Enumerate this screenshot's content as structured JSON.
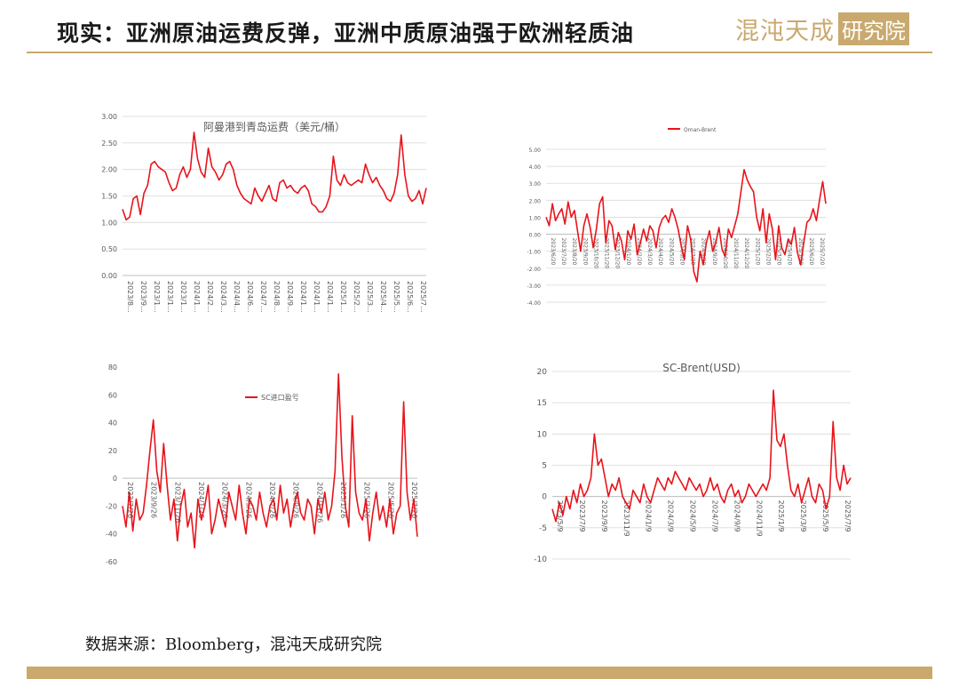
{
  "header": {
    "title": "现实：亚洲原油运费反弹，亚洲中质原油强于欧洲轻质油",
    "logo_text": "混沌天成",
    "logo_box": "研究院"
  },
  "footer": {
    "source": "数据来源：Bloomberg，混沌天成研究院"
  },
  "colors": {
    "series": "#e8141b",
    "gold": "#c9a96e",
    "grid": "#d9d9d9",
    "axis_text": "#595959"
  },
  "chart_data": [
    {
      "type": "line",
      "title": "阿曼港到青岛运费（美元/桶）",
      "ylim": [
        0,
        3
      ],
      "y_ticks": [
        "0.00",
        "0.50",
        "1.00",
        "1.50",
        "2.00",
        "2.50",
        "3.00"
      ],
      "x_ticks": [
        "2023/8...",
        "2023/9...",
        "2023/1...",
        "2023/1...",
        "2023/1...",
        "2024/1...",
        "2024/2...",
        "2024/3...",
        "2024/4...",
        "2024/6...",
        "2024/7...",
        "2024/8...",
        "2024/9...",
        "2024/1...",
        "2024/1...",
        "2024/1...",
        "2025/1...",
        "2025/2...",
        "2025/3...",
        "2025/4...",
        "2025/5...",
        "2025/6...",
        "2025/7..."
      ],
      "grid": true,
      "series": [
        {
          "name": "",
          "values": [
            1.25,
            1.05,
            1.1,
            1.45,
            1.5,
            1.15,
            1.55,
            1.7,
            2.1,
            2.15,
            2.05,
            2.0,
            1.95,
            1.75,
            1.6,
            1.65,
            1.9,
            2.05,
            1.85,
            2.0,
            2.7,
            2.2,
            1.95,
            1.85,
            2.4,
            2.05,
            1.95,
            1.8,
            1.9,
            2.1,
            2.15,
            2.0,
            1.7,
            1.55,
            1.45,
            1.4,
            1.35,
            1.65,
            1.5,
            1.4,
            1.55,
            1.7,
            1.45,
            1.4,
            1.75,
            1.8,
            1.65,
            1.7,
            1.6,
            1.55,
            1.65,
            1.7,
            1.6,
            1.35,
            1.3,
            1.2,
            1.2,
            1.3,
            1.5,
            2.25,
            1.8,
            1.7,
            1.9,
            1.75,
            1.7,
            1.75,
            1.8,
            1.75,
            2.1,
            1.9,
            1.75,
            1.85,
            1.7,
            1.6,
            1.45,
            1.4,
            1.55,
            1.9,
            2.65,
            1.9,
            1.5,
            1.4,
            1.45,
            1.6,
            1.35,
            1.65
          ]
        }
      ]
    },
    {
      "type": "line",
      "ylim": [
        -4,
        5
      ],
      "y_ticks": [
        "5.00",
        "4.00",
        "3.00",
        "2.00",
        "1.00",
        "0.00",
        "-1.00",
        "-2.00",
        "-3.00",
        "-4.00"
      ],
      "x_ticks": [
        "2023/6/20",
        "2023/7/20",
        "2023/8/20",
        "2023/9/20",
        "2023/10/20",
        "2023/11/20",
        "2023/12/20",
        "2024/1/20",
        "2024/2/20",
        "2024/3/20",
        "2024/4/20",
        "2024/5/20",
        "2024/6/20",
        "2024/7/20",
        "2024/8/20",
        "2024/9/20",
        "2024/10/20",
        "2024/11/20",
        "2024/12/20",
        "2025/1/20",
        "2025/2/20",
        "2025/3/20",
        "2025/4/20",
        "2025/5/20",
        "2025/6/20",
        "2025/7/20"
      ],
      "legend": "top",
      "grid": true,
      "series": [
        {
          "name": "Oman-Brent",
          "values": [
            1.0,
            0.5,
            1.8,
            0.8,
            1.2,
            1.5,
            0.6,
            1.9,
            1.0,
            1.4,
            0.2,
            -1.0,
            0.5,
            1.2,
            0.4,
            -0.8,
            0.3,
            1.8,
            2.2,
            -0.5,
            0.8,
            0.5,
            -0.9,
            0.1,
            -0.4,
            -1.5,
            0.2,
            -0.3,
            0.6,
            -1.2,
            -0.5,
            0.3,
            -0.4,
            0.5,
            0.2,
            -0.8,
            0.4,
            0.9,
            1.1,
            0.7,
            1.5,
            1.0,
            0.3,
            -0.7,
            -1.5,
            0.5,
            -0.3,
            -2.2,
            -2.8,
            -1.0,
            -1.8,
            -0.5,
            0.2,
            -1.0,
            -0.5,
            0.4,
            -0.9,
            -1.3,
            0.3,
            -0.2,
            0.5,
            1.2,
            2.5,
            3.8,
            3.2,
            2.8,
            2.5,
            1.0,
            0.2,
            1.5,
            -0.5,
            1.2,
            0.3,
            -1.5,
            0.5,
            -0.8,
            -1.2,
            -0.3,
            -0.6,
            0.4,
            -1.1,
            -1.8,
            -0.5,
            0.7,
            0.9,
            1.5,
            0.8,
            2.0,
            3.1,
            1.8
          ]
        }
      ]
    },
    {
      "type": "line",
      "ylim": [
        -60,
        80
      ],
      "y_ticks": [
        "80",
        "60",
        "40",
        "20",
        "0",
        "-20",
        "-40",
        "-60"
      ],
      "x_ticks": [
        "2023/7/26",
        "2023/9/26",
        "2023/11/26",
        "2024/1/26",
        "2024/3/26",
        "2024/5/26",
        "2024/7/26",
        "2024/9/26",
        "2024/11/26",
        "2025/1/26",
        "2025/3/26",
        "2025/5/26",
        "2025/7/26"
      ],
      "legend": "top",
      "grid": false,
      "series": [
        {
          "name": "SC进口盈亏",
          "values": [
            -20,
            -35,
            -10,
            -38,
            -15,
            -30,
            -25,
            -5,
            20,
            42,
            5,
            -10,
            25,
            -5,
            -30,
            -15,
            -45,
            -20,
            -8,
            -35,
            -25,
            -50,
            -15,
            -30,
            -20,
            -5,
            -40,
            -30,
            -15,
            -25,
            -35,
            -10,
            -20,
            -30,
            -5,
            -25,
            -40,
            -15,
            -20,
            -30,
            -10,
            -25,
            -35,
            -20,
            -15,
            -30,
            -5,
            -25,
            -15,
            -35,
            -20,
            -10,
            -25,
            -30,
            -15,
            -20,
            -40,
            -15,
            -25,
            -10,
            -30,
            -20,
            5,
            75,
            15,
            -20,
            -35,
            45,
            -10,
            -25,
            -30,
            -15,
            -45,
            -25,
            -10,
            -30,
            -20,
            -35,
            -15,
            -40,
            -25,
            -20,
            55,
            -10,
            -30,
            -15,
            -42
          ]
        }
      ]
    },
    {
      "type": "line",
      "title": "SC-Brent(USD)",
      "ylim": [
        -10,
        20
      ],
      "y_ticks": [
        "20",
        "15",
        "10",
        "5",
        "0",
        "-5",
        "-10"
      ],
      "x_ticks": [
        "2023/5/9",
        "2023/7/9",
        "2023/9/9",
        "2023/11/9",
        "2024/1/9",
        "2024/3/9",
        "2024/5/9",
        "2024/7/9",
        "2024/9/9",
        "2024/11/9",
        "2025/1/9",
        "2025/3/9",
        "2025/5/9",
        "2025/7/9"
      ],
      "grid": true,
      "series": [
        {
          "name": "",
          "values": [
            -2,
            -4,
            -1,
            -3,
            0,
            -2,
            1,
            -1,
            2,
            0,
            1,
            3,
            10,
            5,
            6,
            3,
            0,
            2,
            1,
            3,
            0,
            -1,
            -2,
            1,
            0,
            -1,
            2,
            0,
            -1,
            1,
            3,
            2,
            1,
            3,
            2,
            4,
            3,
            2,
            1,
            3,
            2,
            1,
            2,
            0,
            1,
            3,
            1,
            2,
            0,
            -1,
            1,
            2,
            0,
            1,
            -1,
            0,
            2,
            1,
            0,
            1,
            2,
            1,
            3,
            17,
            9,
            8,
            10,
            5,
            1,
            0,
            2,
            -1,
            1,
            3,
            0,
            -1,
            2,
            1,
            -2,
            0,
            12,
            3,
            1,
            5,
            2,
            3
          ]
        }
      ]
    }
  ]
}
